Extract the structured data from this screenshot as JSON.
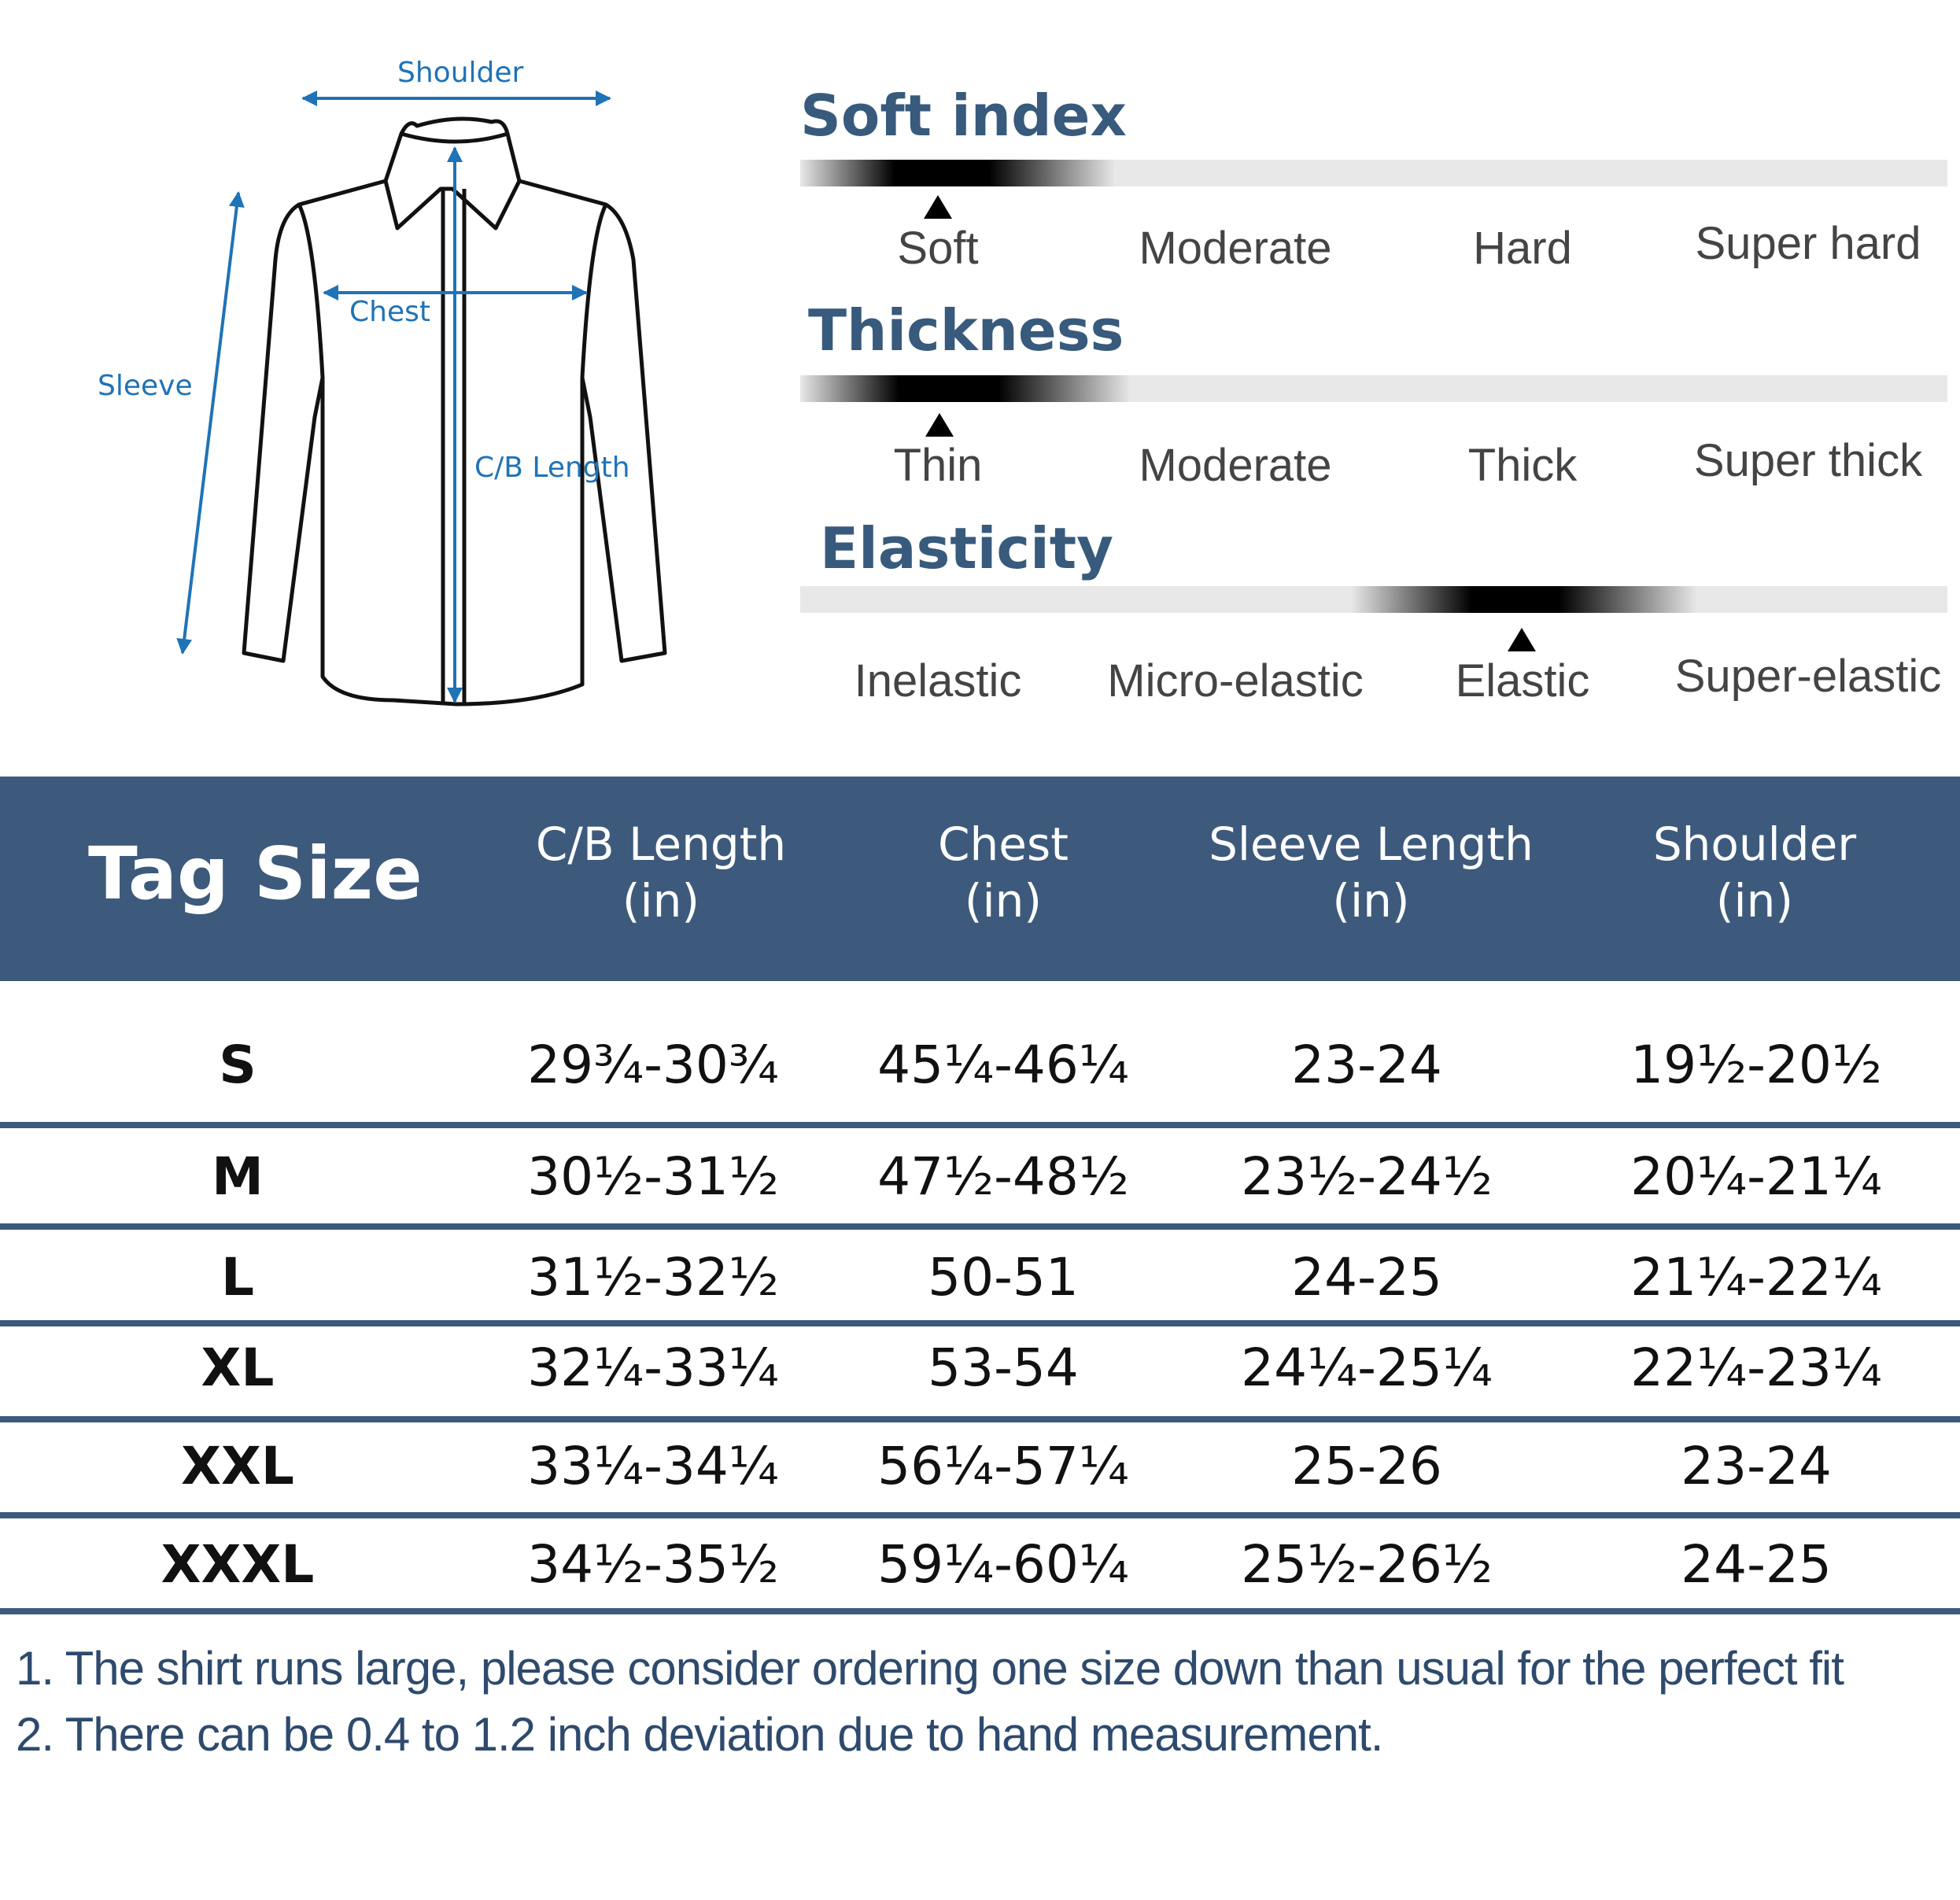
{
  "diagram": {
    "labels": {
      "shoulder": "Shoulder",
      "chest": "Chest",
      "sleeve": "Sleeve",
      "cb_length": "C/B Length"
    },
    "accent_color": "#1f73b7"
  },
  "indices": [
    {
      "title": "Soft index",
      "options": [
        "Soft",
        "Moderate",
        "Hard",
        "Super hard"
      ],
      "selected": "Soft"
    },
    {
      "title": "Thickness",
      "options": [
        "Thin",
        "Moderate",
        "Thick",
        "Super thick"
      ],
      "selected": "Thin"
    },
    {
      "title": "Elasticity",
      "options": [
        "Inelastic",
        "Micro-elastic",
        "Elastic",
        "Super-elastic"
      ],
      "selected": "Elastic"
    }
  ],
  "table": {
    "header_color": "#3d5a7c",
    "columns": [
      {
        "label": "Tag Size",
        "unit": ""
      },
      {
        "label": "C/B Length",
        "unit": "(in)"
      },
      {
        "label": "Chest",
        "unit": "(in)"
      },
      {
        "label": "Sleeve Length",
        "unit": "(in)"
      },
      {
        "label": "Shoulder",
        "unit": "(in)"
      }
    ],
    "rows": [
      [
        "S",
        "29¾-30¾",
        "45¼-46¼",
        "23-24",
        "19½-20½"
      ],
      [
        "M",
        "30½-31½",
        "47½-48½",
        "23½-24½",
        "20¼-21¼"
      ],
      [
        "L",
        "31½-32½",
        "50-51",
        "24-25",
        "21¼-22¼"
      ],
      [
        "XL",
        "32¼-33¼",
        "53-54",
        "24¼-25¼",
        "22¼-23¼"
      ],
      [
        "XXL",
        "33¼-34¼",
        "56¼-57¼",
        "25-26",
        "23-24"
      ],
      [
        "XXXL",
        "34½-35½",
        "59¼-60¼",
        "25½-26½",
        "24-25"
      ]
    ]
  },
  "notes": [
    "1.  The shirt runs large, please consider ordering one size down than usual for the perfect fit",
    "2. There can be 0.4 to 1.2 inch deviation due to hand measurement."
  ]
}
